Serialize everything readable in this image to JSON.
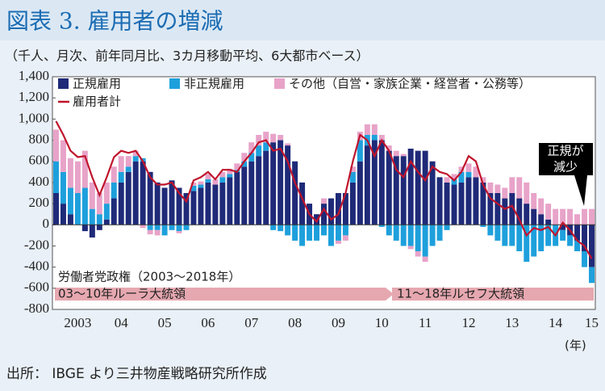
{
  "chart_data": {
    "type": "bar",
    "title": "図表 3. 雇用者の増減",
    "subtitle": "（千人、月次、前年同月比、3カ月移動平均、6大都市ベース）",
    "source": "出所： IBGE より三井物産戦略研究所作成",
    "x_unit": "(年)",
    "callout": [
      "正規が",
      "減少"
    ],
    "periods": [
      "労働者党政権（2003～2018年）",
      "03～10年ルーラ大統領",
      "11～18年ルセフ大統領"
    ],
    "categories": [
      null,
      null,
      null,
      "2003",
      null,
      null,
      null,
      null,
      null,
      "04",
      null,
      null,
      null,
      null,
      null,
      "05",
      null,
      null,
      null,
      null,
      null,
      "06",
      null,
      null,
      null,
      null,
      null,
      "07",
      null,
      null,
      null,
      null,
      null,
      "08",
      null,
      null,
      null,
      null,
      null,
      "09",
      null,
      null,
      null,
      null,
      null,
      "10",
      null,
      null,
      null,
      null,
      null,
      "11",
      null,
      null,
      null,
      null,
      null,
      "12",
      null,
      null,
      null,
      null,
      null,
      "13",
      null,
      null,
      null,
      null,
      null,
      "14",
      null,
      null,
      null,
      null,
      "15"
    ],
    "series": [
      {
        "name": "正規雇用",
        "color": "#1f2a78",
        "values": [
          300,
          200,
          100,
          0,
          -60,
          -120,
          -50,
          50,
          250,
          400,
          500,
          600,
          600,
          500,
          400,
          350,
          420,
          350,
          300,
          320,
          350,
          400,
          380,
          400,
          450,
          500,
          550,
          600,
          650,
          700,
          780,
          800,
          750,
          600,
          400,
          200,
          100,
          200,
          250,
          300,
          300,
          400,
          600,
          750,
          800,
          800,
          700,
          650,
          650,
          720,
          700,
          700,
          600,
          450,
          400,
          380,
          400,
          450,
          450,
          400,
          300,
          300,
          250,
          300,
          250,
          200,
          150,
          100,
          50,
          0,
          -50,
          -100,
          -150,
          -250,
          -400
        ]
      },
      {
        "name": "非正規雇用",
        "color": "#1ea0dc",
        "values": [
          300,
          300,
          250,
          300,
          350,
          150,
          100,
          150,
          150,
          100,
          50,
          50,
          30,
          -50,
          -50,
          -100,
          -50,
          -60,
          -50,
          50,
          30,
          30,
          0,
          50,
          30,
          20,
          50,
          80,
          100,
          80,
          -50,
          -60,
          -100,
          -150,
          -200,
          -150,
          -150,
          -100,
          -200,
          -150,
          -100,
          100,
          200,
          100,
          50,
          -20,
          -100,
          -150,
          -200,
          -200,
          -250,
          -300,
          -200,
          -150,
          -50,
          50,
          100,
          50,
          0,
          -20,
          -100,
          -150,
          -200,
          -200,
          -250,
          -350,
          -300,
          -250,
          -200,
          -200,
          -100,
          -100,
          -100,
          -150,
          -150
        ]
      },
      {
        "name": "その他（自営・家族企業・経営者・公務等）",
        "color": "#e8a3c9",
        "values": [
          300,
          300,
          280,
          300,
          350,
          250,
          200,
          200,
          150,
          150,
          100,
          50,
          -30,
          -40,
          -50,
          0,
          0,
          -20,
          0,
          30,
          30,
          50,
          50,
          50,
          50,
          60,
          80,
          100,
          100,
          100,
          80,
          50,
          20,
          0,
          0,
          0,
          0,
          50,
          0,
          -30,
          -50,
          50,
          80,
          100,
          100,
          50,
          50,
          50,
          20,
          -30,
          -50,
          -50,
          0,
          0,
          50,
          50,
          50,
          80,
          100,
          50,
          100,
          80,
          100,
          150,
          200,
          200,
          150,
          150,
          150,
          150,
          150,
          150,
          100,
          150,
          150
        ]
      },
      {
        "name": "雇用者計",
        "color": "#c0142c",
        "line": true,
        "values": [
          980,
          850,
          700,
          640,
          650,
          450,
          280,
          450,
          640,
          700,
          680,
          700,
          600,
          450,
          380,
          380,
          400,
          300,
          220,
          420,
          450,
          500,
          430,
          520,
          520,
          500,
          600,
          680,
          780,
          800,
          700,
          720,
          600,
          400,
          250,
          100,
          30,
          150,
          50,
          100,
          300,
          600,
          850,
          800,
          650,
          800,
          700,
          520,
          450,
          600,
          500,
          420,
          550,
          500,
          480,
          420,
          500,
          650,
          600,
          380,
          250,
          200,
          150,
          180,
          50,
          -100,
          -30,
          -50,
          -20,
          -100,
          20,
          -50,
          -150,
          -200,
          -320
        ]
      }
    ],
    "ylim": [
      -800,
      1400
    ],
    "yticks": [
      -800,
      -600,
      -400,
      -200,
      0,
      200,
      400,
      600,
      800,
      {
        "value": 1000,
        "label": "1,000"
      },
      {
        "value": 1200,
        "label": "1,200"
      },
      {
        "value": 1400,
        "label": "1,400"
      }
    ]
  }
}
